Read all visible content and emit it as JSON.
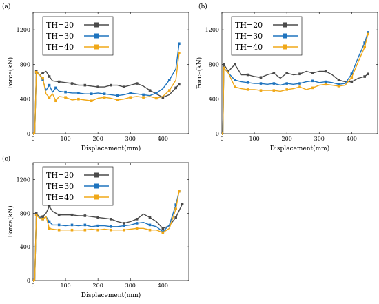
{
  "chart_data": [
    {
      "type": "line",
      "panel_label": "(a)",
      "xlabel": "Displacement(mm)",
      "ylabel": "Force(kN)",
      "xlim": [
        0,
        480
      ],
      "ylim": [
        0,
        1400
      ],
      "xticks": [
        0,
        100,
        200,
        300,
        400
      ],
      "yticks": [
        0,
        400,
        800,
        1200
      ],
      "legend_position": "top-left",
      "series": [
        {
          "name": "TH=20",
          "color": "#4a4a4a",
          "x": [
            0,
            5,
            10,
            20,
            30,
            40,
            50,
            60,
            80,
            100,
            120,
            140,
            160,
            180,
            200,
            220,
            240,
            260,
            280,
            300,
            320,
            340,
            360,
            380,
            400,
            420,
            440,
            450
          ],
          "y": [
            0,
            0,
            720,
            680,
            700,
            720,
            660,
            610,
            600,
            590,
            580,
            560,
            560,
            550,
            540,
            540,
            560,
            560,
            540,
            560,
            580,
            550,
            500,
            460,
            420,
            450,
            530,
            570
          ]
        },
        {
          "name": "TH=30",
          "color": "#1e73be",
          "x": [
            0,
            5,
            10,
            20,
            30,
            40,
            50,
            60,
            70,
            80,
            100,
            120,
            140,
            160,
            180,
            200,
            220,
            240,
            260,
            280,
            300,
            320,
            340,
            360,
            380,
            400,
            420,
            440,
            450
          ],
          "y": [
            0,
            0,
            700,
            680,
            620,
            500,
            560,
            480,
            530,
            490,
            480,
            470,
            470,
            460,
            460,
            470,
            460,
            450,
            440,
            450,
            470,
            460,
            450,
            440,
            470,
            520,
            620,
            750,
            1040
          ]
        },
        {
          "name": "TH=40",
          "color": "#f0a818",
          "x": [
            0,
            5,
            10,
            20,
            30,
            40,
            50,
            60,
            70,
            80,
            100,
            120,
            140,
            160,
            180,
            200,
            220,
            240,
            260,
            280,
            300,
            320,
            340,
            360,
            380,
            400,
            420,
            440,
            450
          ],
          "y": [
            0,
            0,
            710,
            680,
            640,
            460,
            420,
            460,
            380,
            430,
            420,
            390,
            400,
            390,
            380,
            410,
            420,
            410,
            390,
            400,
            420,
            430,
            420,
            430,
            410,
            430,
            500,
            620,
            930
          ]
        }
      ]
    },
    {
      "type": "line",
      "panel_label": "(b)",
      "xlabel": "Displacement(mm)",
      "ylabel": "Force(kN)",
      "xlim": [
        0,
        480
      ],
      "ylim": [
        0,
        1400
      ],
      "xticks": [
        0,
        100,
        200,
        300,
        400
      ],
      "yticks": [
        0,
        400,
        800,
        1200
      ],
      "legend_position": "top-left",
      "series": [
        {
          "name": "TH=20",
          "color": "#4a4a4a",
          "x": [
            0,
            3,
            6,
            20,
            40,
            60,
            80,
            100,
            120,
            140,
            160,
            180,
            200,
            220,
            240,
            260,
            280,
            300,
            320,
            340,
            360,
            380,
            400,
            420,
            440,
            450
          ],
          "y": [
            0,
            0,
            800,
            720,
            800,
            680,
            680,
            660,
            650,
            680,
            700,
            640,
            700,
            680,
            690,
            720,
            700,
            720,
            720,
            680,
            620,
            600,
            600,
            640,
            660,
            690
          ]
        },
        {
          "name": "TH=30",
          "color": "#1e73be",
          "x": [
            0,
            3,
            6,
            20,
            40,
            60,
            80,
            100,
            120,
            140,
            160,
            180,
            200,
            220,
            240,
            260,
            280,
            300,
            320,
            340,
            360,
            380,
            400,
            420,
            440,
            450
          ],
          "y": [
            0,
            0,
            760,
            700,
            620,
            600,
            590,
            580,
            580,
            570,
            580,
            560,
            580,
            570,
            580,
            600,
            610,
            590,
            600,
            590,
            570,
            580,
            690,
            880,
            1050,
            1170
          ]
        },
        {
          "name": "TH=40",
          "color": "#f0a818",
          "x": [
            0,
            3,
            6,
            20,
            40,
            60,
            80,
            100,
            120,
            140,
            160,
            180,
            200,
            220,
            240,
            260,
            280,
            300,
            320,
            340,
            360,
            380,
            400,
            420,
            440,
            450
          ],
          "y": [
            0,
            0,
            760,
            700,
            540,
            520,
            510,
            510,
            500,
            500,
            500,
            490,
            510,
            520,
            540,
            510,
            530,
            560,
            570,
            560,
            550,
            560,
            650,
            830,
            1000,
            1150
          ]
        }
      ]
    },
    {
      "type": "line",
      "panel_label": "(c)",
      "xlabel": "Displacement(mm)",
      "ylabel": "Force(kN)",
      "xlim": [
        0,
        480
      ],
      "ylim": [
        0,
        1400
      ],
      "xticks": [
        0,
        100,
        200,
        300,
        400
      ],
      "yticks": [
        0,
        400,
        800,
        1200
      ],
      "legend_position": "top-left",
      "series": [
        {
          "name": "TH=20",
          "color": "#4a4a4a",
          "x": [
            0,
            5,
            10,
            20,
            30,
            40,
            50,
            60,
            80,
            100,
            120,
            140,
            160,
            180,
            200,
            220,
            240,
            260,
            280,
            300,
            320,
            340,
            360,
            380,
            400,
            420,
            440,
            460
          ],
          "y": [
            0,
            0,
            800,
            750,
            760,
            800,
            880,
            820,
            780,
            780,
            780,
            770,
            770,
            760,
            750,
            740,
            730,
            700,
            680,
            700,
            730,
            790,
            750,
            700,
            620,
            650,
            750,
            910
          ]
        },
        {
          "name": "TH=30",
          "color": "#1e73be",
          "x": [
            0,
            5,
            10,
            20,
            30,
            40,
            50,
            60,
            80,
            100,
            120,
            140,
            160,
            180,
            200,
            220,
            240,
            260,
            280,
            300,
            320,
            340,
            360,
            380,
            400,
            420,
            440,
            450
          ],
          "y": [
            0,
            0,
            780,
            750,
            730,
            760,
            700,
            660,
            660,
            650,
            660,
            650,
            660,
            640,
            650,
            650,
            640,
            640,
            650,
            660,
            680,
            690,
            660,
            640,
            580,
            660,
            900,
            1060
          ]
        },
        {
          "name": "TH=40",
          "color": "#f0a818",
          "x": [
            0,
            5,
            10,
            20,
            30,
            40,
            50,
            60,
            80,
            100,
            120,
            140,
            160,
            180,
            200,
            220,
            240,
            260,
            280,
            300,
            320,
            340,
            360,
            380,
            400,
            420,
            440,
            450
          ],
          "y": [
            0,
            0,
            780,
            740,
            730,
            760,
            620,
            610,
            600,
            600,
            600,
            600,
            600,
            610,
            600,
            610,
            600,
            600,
            600,
            610,
            620,
            620,
            600,
            600,
            570,
            620,
            850,
            1060
          ]
        }
      ]
    }
  ]
}
